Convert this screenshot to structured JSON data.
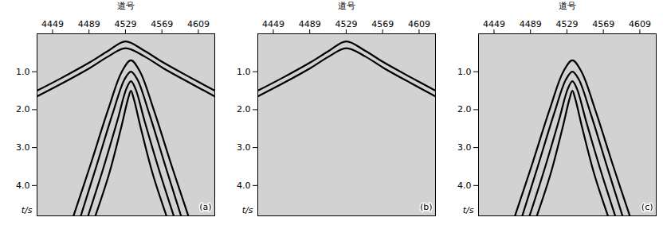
{
  "chart_data": [
    {
      "type": "line",
      "title": "(a)",
      "xlabel": "道号",
      "ylabel": "t/s",
      "xlim": [
        4432,
        4627
      ],
      "ylim": [
        0,
        4.8
      ],
      "xticks": [
        4449,
        4489,
        4529,
        4569,
        4609
      ],
      "yticks": [
        {
          "value": 1,
          "label": "1.0"
        },
        {
          "value": 2,
          "label": "2.0"
        },
        {
          "value": 3,
          "label": "3.0"
        },
        {
          "value": 4,
          "label": "4.0"
        }
      ],
      "series": [
        {
          "color": "#000000",
          "x": [
            4432,
            4460,
            4490,
            4510,
            4529,
            4550,
            4570,
            4600,
            4627
          ],
          "values": [
            1.5,
            1.15,
            0.75,
            0.45,
            0.2,
            0.45,
            0.75,
            1.15,
            1.5
          ]
        },
        {
          "color": "#000000",
          "x": [
            4432,
            4460,
            4490,
            4510,
            4529,
            4550,
            4570,
            4600,
            4627
          ],
          "values": [
            1.65,
            1.3,
            0.9,
            0.6,
            0.38,
            0.6,
            0.9,
            1.3,
            1.65
          ]
        },
        {
          "color": "#000000",
          "x": [
            4472,
            4490,
            4510,
            4525,
            4535,
            4545,
            4560,
            4580,
            4598
          ],
          "values": [
            4.8,
            3.5,
            2.0,
            1.0,
            0.7,
            1.0,
            2.0,
            3.5,
            4.8
          ]
        },
        {
          "color": "#000000",
          "x": [
            4480,
            4497,
            4515,
            4528,
            4535,
            4542,
            4555,
            4573,
            4590
          ],
          "values": [
            4.8,
            3.5,
            2.1,
            1.2,
            1.0,
            1.2,
            2.1,
            3.5,
            4.8
          ]
        },
        {
          "color": "#000000",
          "x": [
            4488,
            4504,
            4520,
            4530,
            4535,
            4540,
            4550,
            4566,
            4582
          ],
          "values": [
            4.8,
            3.6,
            2.3,
            1.45,
            1.25,
            1.45,
            2.3,
            3.6,
            4.8
          ]
        },
        {
          "color": "#000000",
          "x": [
            4496,
            4511,
            4524,
            4532,
            4535,
            4538,
            4546,
            4559,
            4574
          ],
          "values": [
            4.8,
            3.7,
            2.5,
            1.7,
            1.5,
            1.7,
            2.5,
            3.7,
            4.8
          ]
        }
      ]
    },
    {
      "type": "line",
      "title": "(b)",
      "xlabel": "道号",
      "ylabel": "t/s",
      "xlim": [
        4432,
        4627
      ],
      "ylim": [
        0,
        4.8
      ],
      "xticks": [
        4449,
        4489,
        4529,
        4569,
        4609
      ],
      "yticks": [
        {
          "value": 1,
          "label": "1.0"
        },
        {
          "value": 2,
          "label": "2.0"
        },
        {
          "value": 3,
          "label": "3.0"
        },
        {
          "value": 4,
          "label": "4.0"
        }
      ],
      "series": [
        {
          "color": "#000000",
          "x": [
            4432,
            4460,
            4490,
            4510,
            4529,
            4550,
            4570,
            4600,
            4627
          ],
          "values": [
            1.5,
            1.15,
            0.75,
            0.45,
            0.2,
            0.45,
            0.75,
            1.15,
            1.5
          ]
        },
        {
          "color": "#000000",
          "x": [
            4432,
            4460,
            4490,
            4510,
            4529,
            4550,
            4570,
            4600,
            4627
          ],
          "values": [
            1.65,
            1.3,
            0.9,
            0.6,
            0.38,
            0.6,
            0.9,
            1.3,
            1.65
          ]
        }
      ]
    },
    {
      "type": "line",
      "title": "(c)",
      "xlabel": "道号",
      "ylabel": "t/s",
      "xlim": [
        4432,
        4627
      ],
      "ylim": [
        0,
        4.8
      ],
      "xticks": [
        4449,
        4489,
        4529,
        4569,
        4609
      ],
      "yticks": [
        {
          "value": 1,
          "label": "1.0"
        },
        {
          "value": 2,
          "label": "2.0"
        },
        {
          "value": 3,
          "label": "3.0"
        },
        {
          "value": 4,
          "label": "4.0"
        }
      ],
      "series": [
        {
          "color": "#000000",
          "x": [
            4472,
            4490,
            4510,
            4525,
            4535,
            4545,
            4560,
            4580,
            4598
          ],
          "values": [
            4.8,
            3.5,
            2.0,
            1.0,
            0.7,
            1.0,
            2.0,
            3.5,
            4.8
          ]
        },
        {
          "color": "#000000",
          "x": [
            4480,
            4497,
            4515,
            4528,
            4535,
            4542,
            4555,
            4573,
            4590
          ],
          "values": [
            4.8,
            3.5,
            2.1,
            1.2,
            1.0,
            1.2,
            2.1,
            3.5,
            4.8
          ]
        },
        {
          "color": "#000000",
          "x": [
            4488,
            4504,
            4520,
            4530,
            4535,
            4540,
            4550,
            4566,
            4582
          ],
          "values": [
            4.8,
            3.6,
            2.3,
            1.45,
            1.25,
            1.45,
            2.3,
            3.6,
            4.8
          ]
        },
        {
          "color": "#000000",
          "x": [
            4496,
            4511,
            4524,
            4532,
            4535,
            4538,
            4546,
            4559,
            4574
          ],
          "values": [
            4.8,
            3.7,
            2.5,
            1.7,
            1.5,
            1.7,
            2.5,
            3.7,
            4.8
          ]
        }
      ]
    }
  ]
}
